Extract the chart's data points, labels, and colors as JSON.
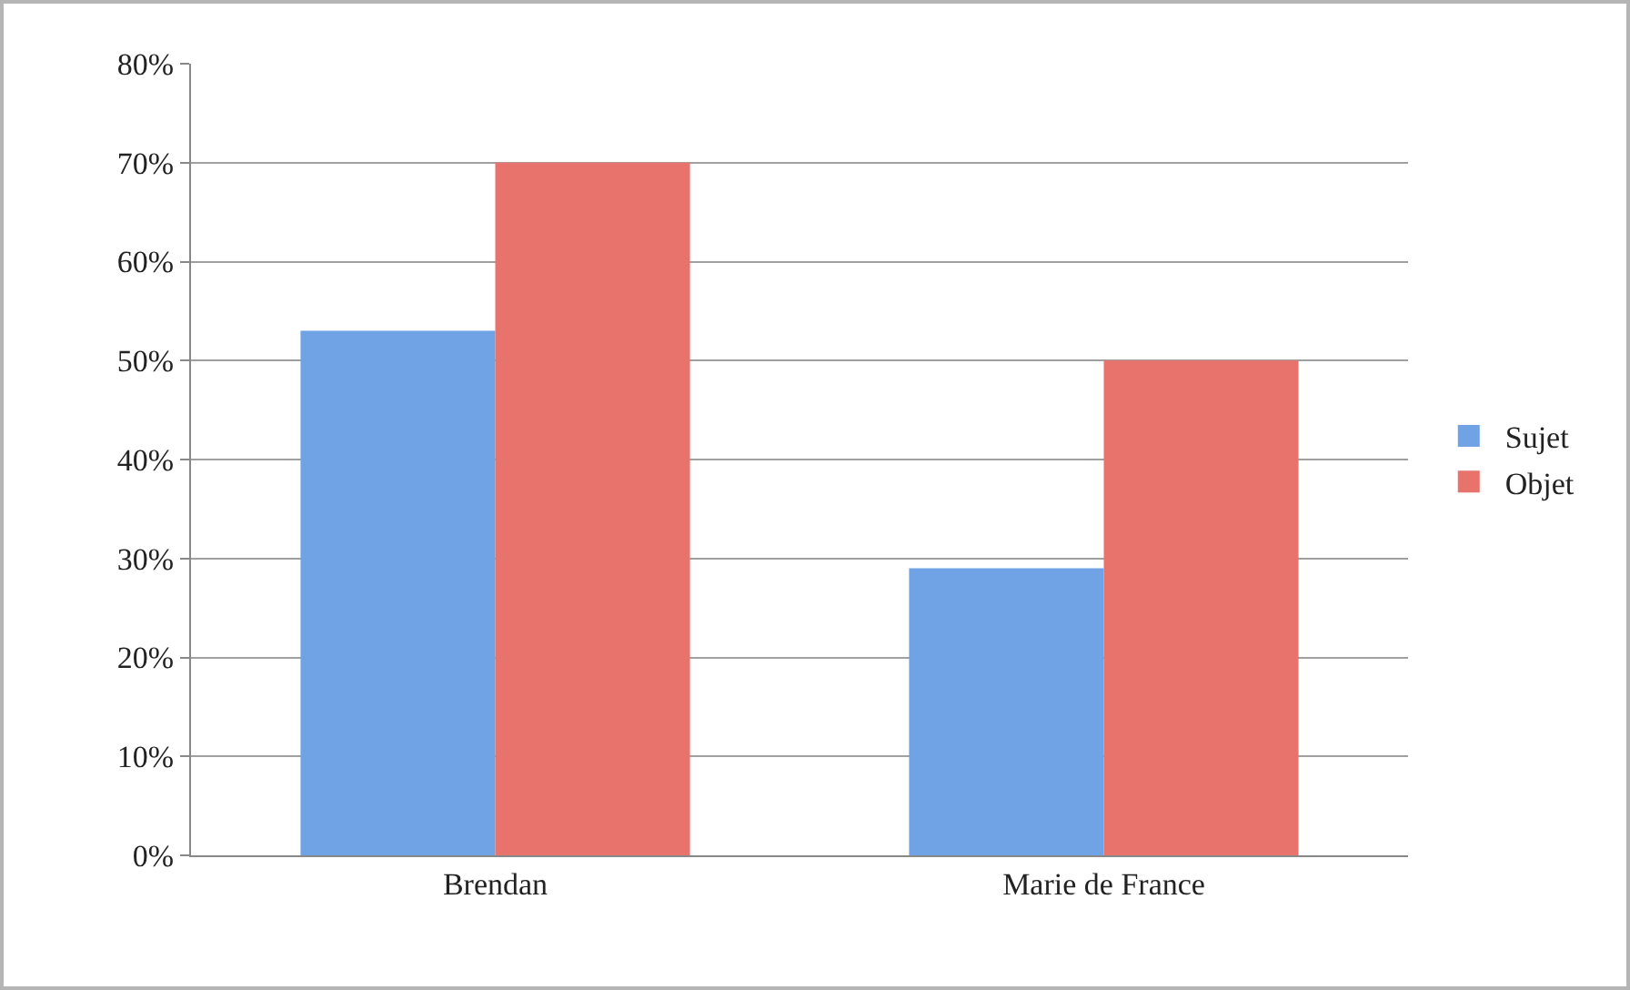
{
  "chart_data": {
    "type": "bar",
    "categories": [
      "Brendan",
      "Marie de France"
    ],
    "series": [
      {
        "name": "Sujet",
        "color": "#6fa3e6",
        "values": [
          53,
          29
        ]
      },
      {
        "name": "Objet",
        "color": "#e8736c",
        "values": [
          70,
          50
        ]
      }
    ],
    "ylim": [
      0,
      80
    ],
    "yticks": [
      {
        "value": 0,
        "label": "0%"
      },
      {
        "value": 10,
        "label": "10%"
      },
      {
        "value": 20,
        "label": "20%"
      },
      {
        "value": 30,
        "label": "30%"
      },
      {
        "value": 40,
        "label": "40%"
      },
      {
        "value": 50,
        "label": "50%"
      },
      {
        "value": 60,
        "label": "60%"
      },
      {
        "value": 70,
        "label": "70%"
      },
      {
        "value": 80,
        "label": "80%"
      }
    ],
    "grid": "y",
    "legend": "right"
  }
}
